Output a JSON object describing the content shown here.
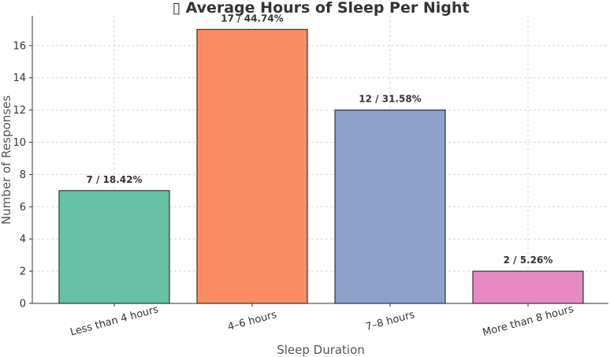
{
  "chart_data": {
    "type": "bar",
    "title": "▯ Average Hours of Sleep Per Night",
    "xlabel": "Sleep Duration",
    "ylabel": "Number of Responses",
    "categories": [
      "Less than 4 hours",
      "4–6 hours",
      "7–8 hours",
      "More than 8 hours"
    ],
    "values": [
      7,
      17,
      12,
      2
    ],
    "data_labels": [
      "7 / 18.42%",
      "17 / 44.74%",
      "12 / 31.58%",
      "2 / 5.26%"
    ],
    "colors": [
      "#66c2a5",
      "#fc8d62",
      "#8da0cb",
      "#e78ac3"
    ],
    "ylim": [
      0,
      17.85
    ],
    "yticks": [
      0,
      2,
      4,
      6,
      8,
      10,
      12,
      14,
      16
    ],
    "grid": true,
    "legend": false
  }
}
